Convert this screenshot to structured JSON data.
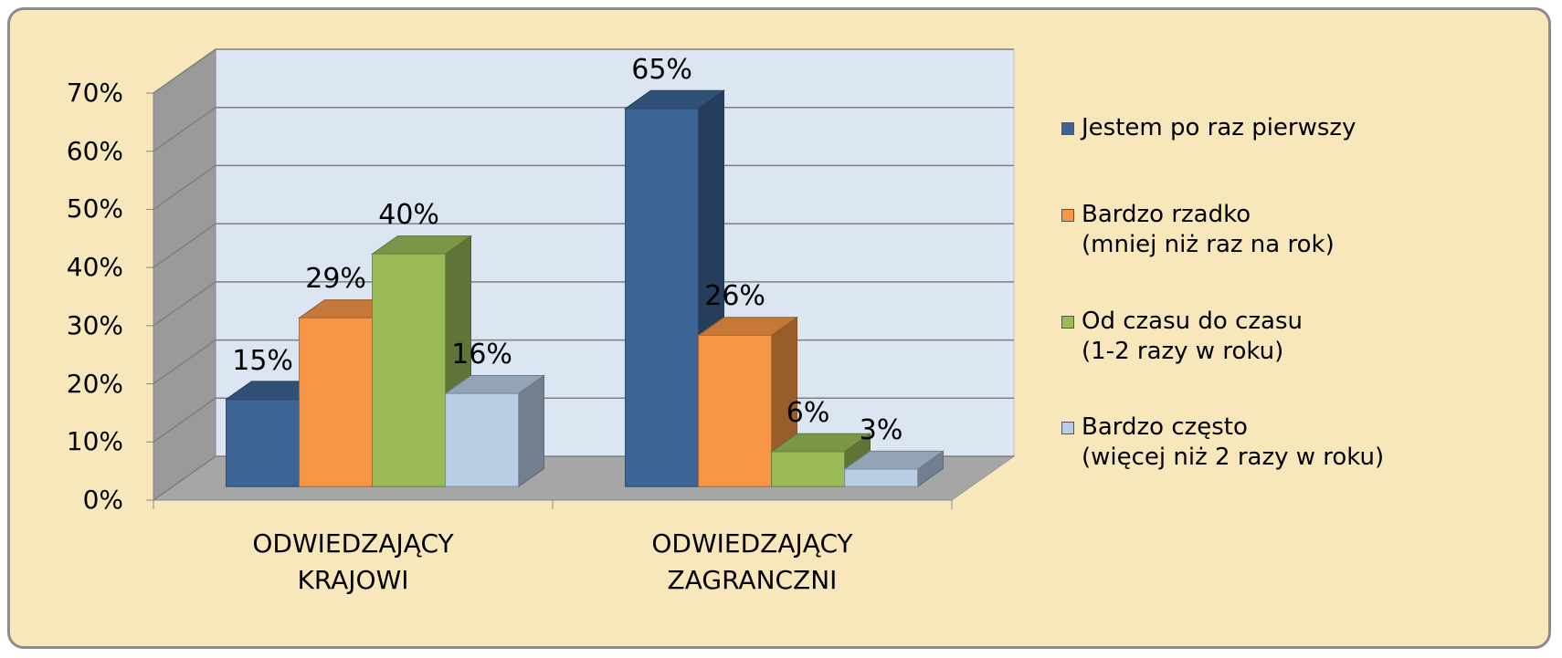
{
  "chart_data": {
    "type": "bar3d",
    "categories": [
      "ODWIEDZAJĄCY\nKRAJOWI",
      "ODWIEDZAJĄCY\nZAGRANCZNI"
    ],
    "series": [
      {
        "name": "Jestem po raz pierwszy",
        "color": "#3c6494",
        "values": [
          15,
          65
        ],
        "value_labels": [
          "15%",
          "65%"
        ]
      },
      {
        "name": "Bardzo rzadko\n(mniej niż raz na rok)",
        "color": "#f79646",
        "values": [
          29,
          26
        ],
        "value_labels": [
          "29%",
          "26%"
        ]
      },
      {
        "name": "Od czasu do czasu\n(1-2 razy w roku)",
        "color": "#9bbb59",
        "values": [
          40,
          6
        ],
        "value_labels": [
          "40%",
          "6%"
        ]
      },
      {
        "name": "Bardzo często\n(więcej niż 2 razy w roku)",
        "color": "#b9cde5",
        "values": [
          16,
          3
        ],
        "value_labels": [
          "16%",
          "3%"
        ]
      }
    ],
    "ylim": [
      0,
      70
    ],
    "yticks": [
      {
        "value": 0,
        "label": "0%"
      },
      {
        "value": 10,
        "label": "10%"
      },
      {
        "value": 20,
        "label": "20%"
      },
      {
        "value": 30,
        "label": "30%"
      },
      {
        "value": 40,
        "label": "40%"
      },
      {
        "value": 50,
        "label": "50%"
      },
      {
        "value": 60,
        "label": "60%"
      },
      {
        "value": 70,
        "label": "70%"
      }
    ],
    "grid": true,
    "legend": "right"
  }
}
